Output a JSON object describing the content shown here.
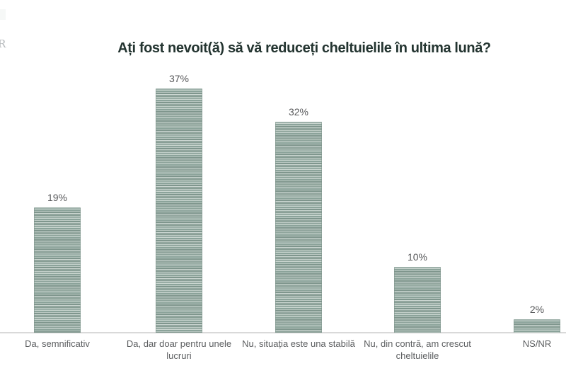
{
  "watermark": {
    "fragment_letter": "R"
  },
  "chart_data": {
    "type": "bar",
    "title": "Ați fost nevoit(ă) să vă reduceți cheltuielile în ultima lună?",
    "categories": [
      "Da, semnificativ",
      "Da, dar doar pentru unele\nlucruri",
      "Nu, situația este una stabilă",
      "Nu, din contră, am crescut\ncheltuielile",
      "NS/NR"
    ],
    "values": [
      19,
      37,
      32,
      10,
      2
    ],
    "value_labels": [
      "19%",
      "37%",
      "32%",
      "10%",
      "2%"
    ],
    "xlabel": "",
    "ylabel": "",
    "ylim": [
      0,
      40
    ],
    "grid": false,
    "legend": false,
    "bar_style": {
      "pattern": "horizontal-stripes",
      "base_color": "#9fb2ab",
      "stripe_light": "#cbd6d1",
      "stripe_dark": "#7f968d"
    },
    "title_color": "#233430",
    "value_label_color": "#58595b",
    "category_label_color": "#5d5f61",
    "axis_line_color": "#d9d9d9"
  }
}
